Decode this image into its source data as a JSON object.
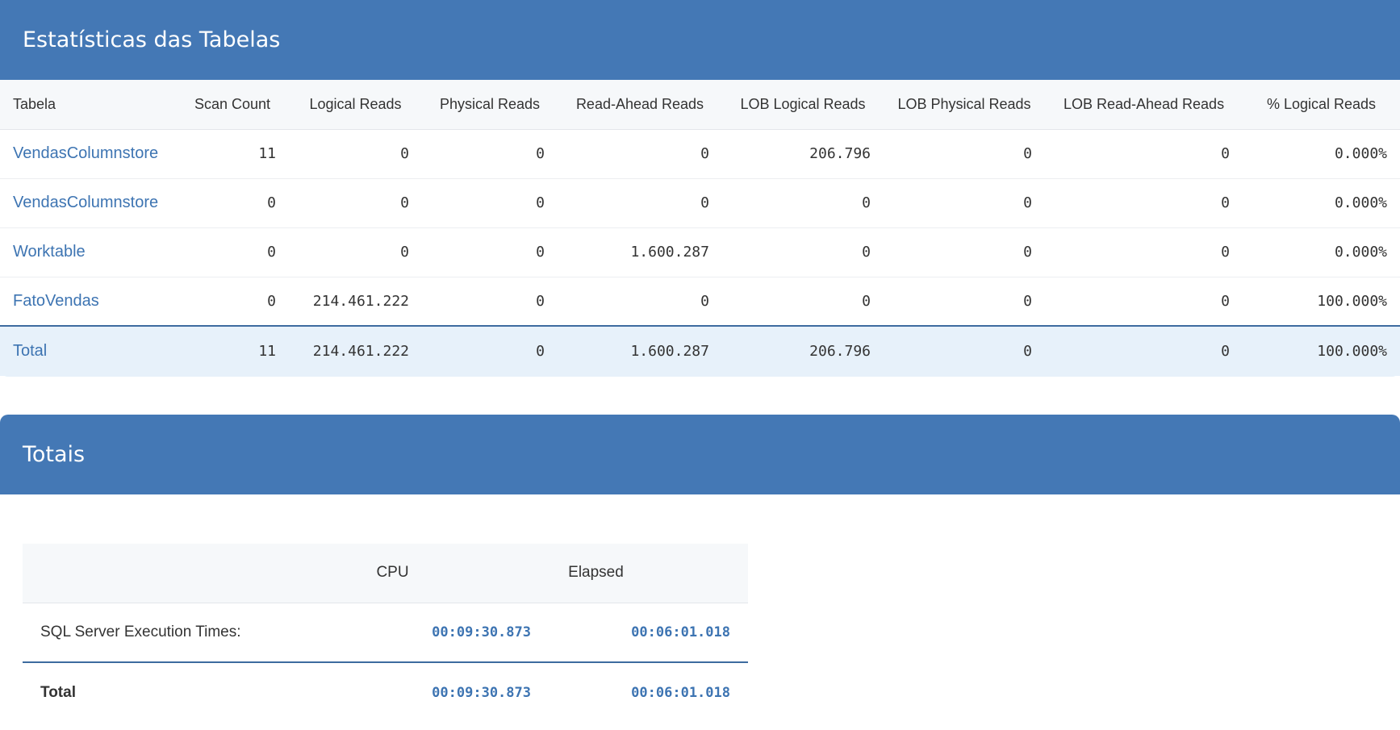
{
  "stats_section": {
    "title": "Estatísticas das Tabelas",
    "columns": [
      "Tabela",
      "Scan Count",
      "Logical Reads",
      "Physical Reads",
      "Read-Ahead Reads",
      "LOB Logical Reads",
      "LOB Physical Reads",
      "LOB Read-Ahead Reads",
      "% Logical Reads"
    ],
    "rows": [
      [
        "VendasColumnstore",
        "11",
        "0",
        "0",
        "0",
        "206.796",
        "0",
        "0",
        "0.000%"
      ],
      [
        "VendasColumnstore",
        "0",
        "0",
        "0",
        "0",
        "0",
        "0",
        "0",
        "0.000%"
      ],
      [
        "Worktable",
        "0",
        "0",
        "0",
        "1.600.287",
        "0",
        "0",
        "0",
        "0.000%"
      ],
      [
        "FatoVendas",
        "0",
        "214.461.222",
        "0",
        "0",
        "0",
        "0",
        "0",
        "100.000%"
      ]
    ],
    "total": [
      "Total",
      "11",
      "214.461.222",
      "0",
      "1.600.287",
      "206.796",
      "0",
      "0",
      "100.000%"
    ]
  },
  "totals_section": {
    "title": "Totais",
    "columns": [
      "",
      "CPU",
      "Elapsed"
    ],
    "exec_row": {
      "label": "SQL Server Execution Times:",
      "cpu": "00:09:30.873",
      "elapsed": "00:06:01.018"
    },
    "total_row": {
      "label": "Total",
      "cpu": "00:09:30.873",
      "elapsed": "00:06:01.018"
    }
  },
  "colors": {
    "header_bg": "#4478b5",
    "link": "#3d74b2",
    "total_row_bg": "#e7f1fa"
  }
}
